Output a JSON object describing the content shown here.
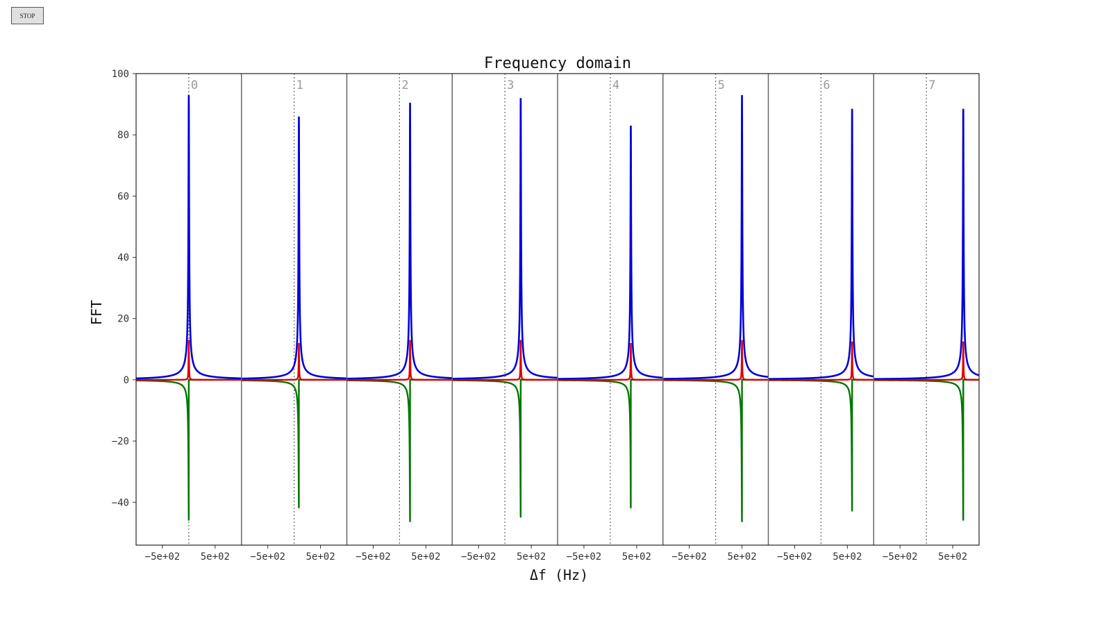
{
  "controls": {
    "stop_label": "STOP"
  },
  "chart_data": {
    "type": "line",
    "title": "Frequency domain",
    "xlabel": "Δf (Hz)",
    "ylabel": "FFT",
    "ylim": [
      -54,
      100
    ],
    "yticks": [
      100,
      80,
      60,
      40,
      20,
      0,
      -20,
      -40
    ],
    "ytick_labels": [
      "100",
      "80",
      "60",
      "40",
      "20",
      "0",
      "−20",
      "−40"
    ],
    "panel_xlim": [
      -1000,
      1000
    ],
    "panel_xticks": [
      -500,
      500
    ],
    "panel_xtick_labels": [
      "−5e+02",
      "5e+02"
    ],
    "grid": false,
    "series_colors": {
      "abs": "#0000dd",
      "real": "#dd0000",
      "imag": "#007700"
    },
    "panel_divider_color": "#666666",
    "center_line_color": "#666666",
    "panels": [
      {
        "label": "0",
        "peak_offset_hz": 0,
        "abs_peak": 93,
        "imag_min": -46,
        "real_peak": 13
      },
      {
        "label": "1",
        "peak_offset_hz": 90,
        "abs_peak": 86,
        "imag_min": -42,
        "real_peak": 12
      },
      {
        "label": "2",
        "peak_offset_hz": 200,
        "abs_peak": 90.5,
        "imag_min": -46.5,
        "real_peak": 13
      },
      {
        "label": "3",
        "peak_offset_hz": 300,
        "abs_peak": 92,
        "imag_min": -45,
        "real_peak": 13
      },
      {
        "label": "4",
        "peak_offset_hz": 390,
        "abs_peak": 83,
        "imag_min": -42,
        "real_peak": 12
      },
      {
        "label": "5",
        "peak_offset_hz": 500,
        "abs_peak": 93,
        "imag_min": -46.5,
        "real_peak": 13
      },
      {
        "label": "6",
        "peak_offset_hz": 590,
        "abs_peak": 88.5,
        "imag_min": -43,
        "real_peak": 12.5
      },
      {
        "label": "7",
        "peak_offset_hz": 700,
        "abs_peak": 88.5,
        "imag_min": -46,
        "real_peak": 12.5
      }
    ]
  }
}
